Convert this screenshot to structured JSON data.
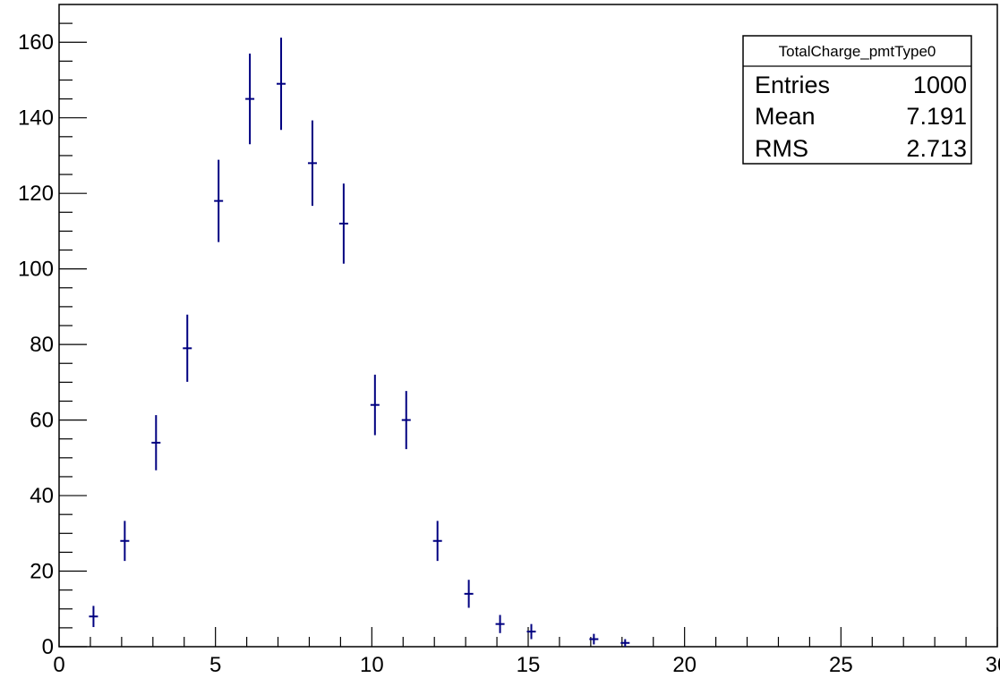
{
  "chart_data": {
    "type": "scatter",
    "title": "",
    "xlabel": "",
    "ylabel": "",
    "xlim": [
      0,
      30
    ],
    "ylim": [
      0,
      170
    ],
    "x_ticks": [
      0,
      5,
      10,
      15,
      20,
      25,
      30
    ],
    "y_ticks": [
      0,
      20,
      40,
      60,
      80,
      100,
      120,
      140,
      160
    ],
    "grid": false,
    "marker_color": "#000080",
    "series": [
      {
        "name": "",
        "points": [
          {
            "x": 1.1,
            "y": 8,
            "err": 2.8
          },
          {
            "x": 2.1,
            "y": 28,
            "err": 5.3
          },
          {
            "x": 3.1,
            "y": 54,
            "err": 7.3
          },
          {
            "x": 4.1,
            "y": 79,
            "err": 8.9
          },
          {
            "x": 5.1,
            "y": 118,
            "err": 10.9
          },
          {
            "x": 6.1,
            "y": 145,
            "err": 12.0
          },
          {
            "x": 7.1,
            "y": 149,
            "err": 12.2
          },
          {
            "x": 8.1,
            "y": 128,
            "err": 11.3
          },
          {
            "x": 9.1,
            "y": 112,
            "err": 10.6
          },
          {
            "x": 10.1,
            "y": 64,
            "err": 8.0
          },
          {
            "x": 11.1,
            "y": 60,
            "err": 7.7
          },
          {
            "x": 12.1,
            "y": 28,
            "err": 5.3
          },
          {
            "x": 13.1,
            "y": 14,
            "err": 3.7
          },
          {
            "x": 14.1,
            "y": 6,
            "err": 2.4
          },
          {
            "x": 15.1,
            "y": 4,
            "err": 2.0
          },
          {
            "x": 17.1,
            "y": 2,
            "err": 1.4
          },
          {
            "x": 18.1,
            "y": 1,
            "err": 1.0
          }
        ]
      }
    ]
  },
  "stats_box": {
    "title": "TotalCharge_pmtType0",
    "rows": [
      {
        "label": "Entries",
        "value": "1000"
      },
      {
        "label": "Mean",
        "value": "7.191"
      },
      {
        "label": "RMS",
        "value": "2.713"
      }
    ]
  }
}
